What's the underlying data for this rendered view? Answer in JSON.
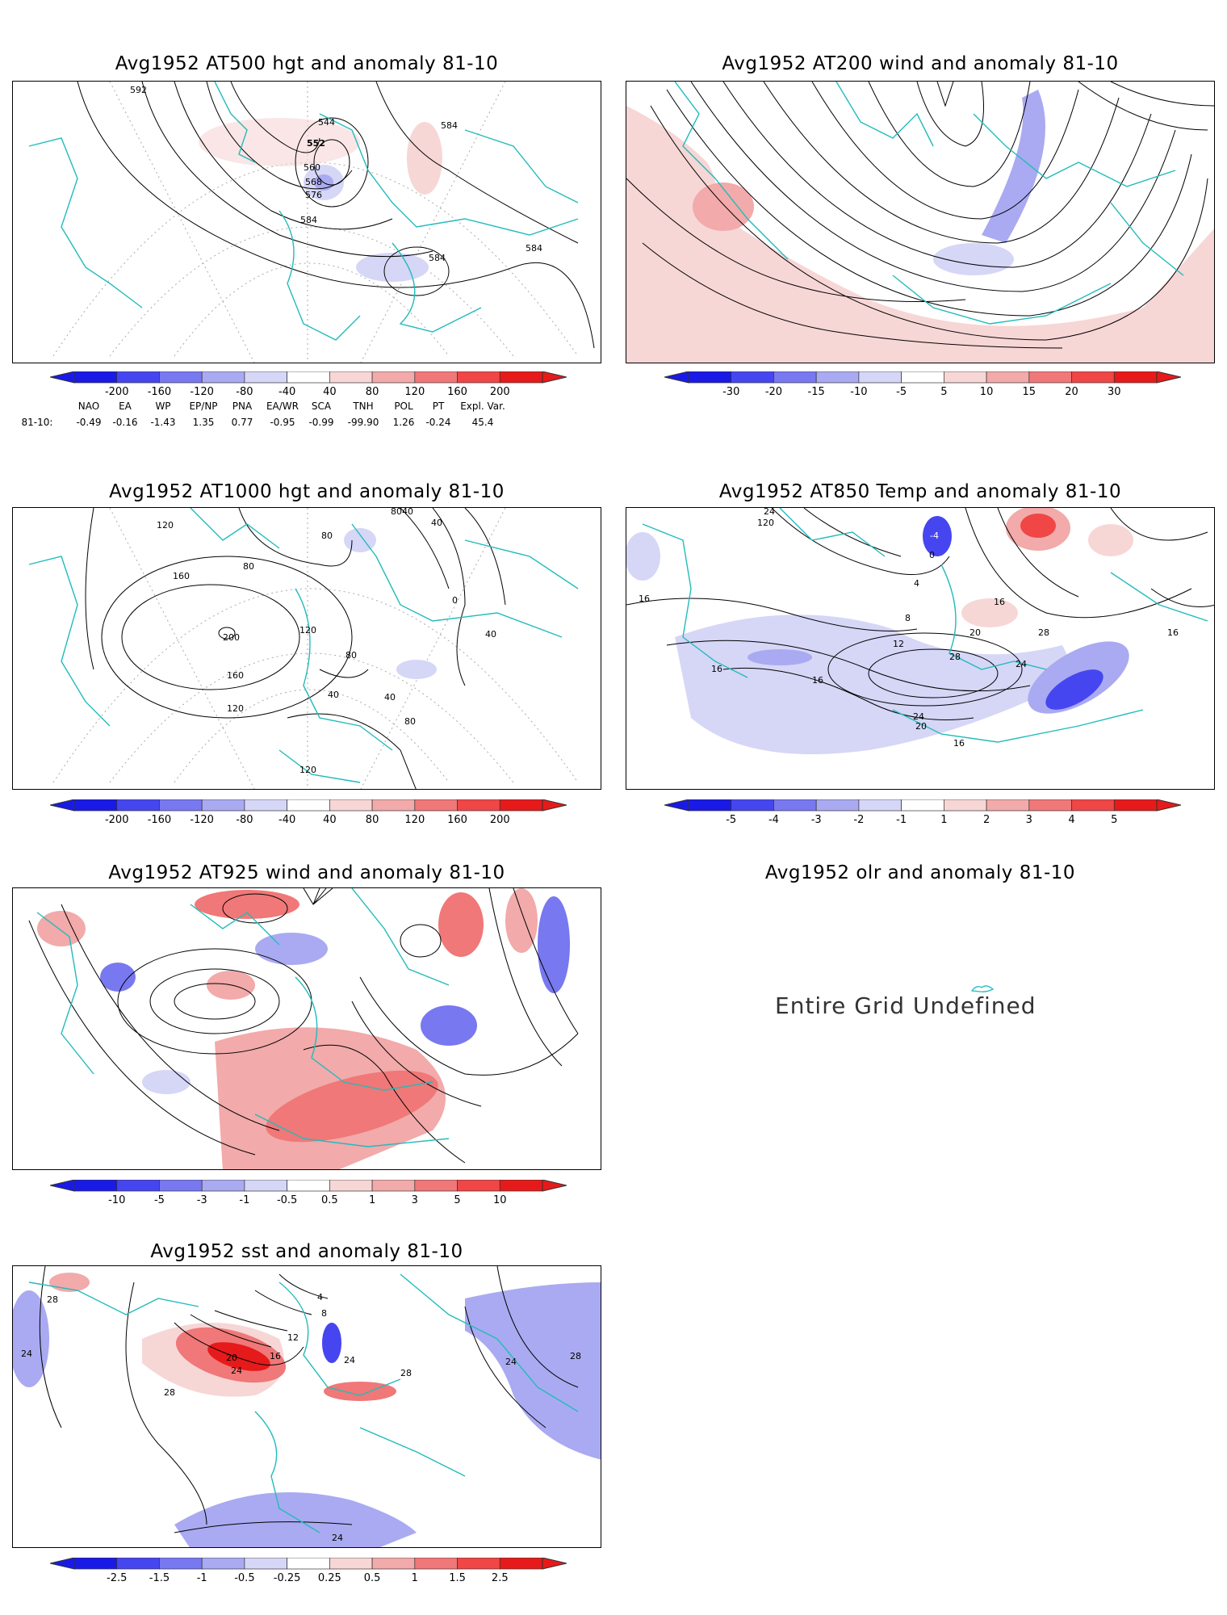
{
  "panels": {
    "p1": {
      "title": "Avg1952 AT500 hgt and anomaly 81-10",
      "labels": [
        "592",
        "544",
        "552",
        "560",
        "568",
        "576",
        "584",
        "584",
        "584",
        "584"
      ]
    },
    "p2": {
      "title": "Avg1952 AT200 wind and anomaly 81-10"
    },
    "p3": {
      "title": "Avg1952 AT1000 hgt and anomaly 81-10",
      "labels": [
        "120",
        "80",
        "40",
        "80",
        "40",
        "80",
        "160",
        "200",
        "160",
        "120",
        "120",
        "80",
        "0",
        "40",
        "40",
        "40",
        "80",
        "120"
      ]
    },
    "p4": {
      "title": "Avg1952 AT850 Temp and anomaly 81-10",
      "labels": [
        "24",
        "120",
        "-4",
        "0",
        "4",
        "8",
        "12",
        "16",
        "16",
        "16",
        "16",
        "20",
        "20",
        "24",
        "24",
        "28",
        "28",
        "16",
        "16"
      ]
    },
    "p5": {
      "title": "Avg1952 AT925 wind and anomaly 81-10"
    },
    "p6": {
      "title": "Avg1952 olr and anomaly 81-10",
      "message": "Entire Grid Undefined"
    },
    "p7": {
      "title": "Avg1952 sst and anomaly 81-10",
      "labels": [
        "28",
        "24",
        "4",
        "8",
        "12",
        "16",
        "20",
        "24",
        "28",
        "28",
        "24",
        "28",
        "24",
        "24"
      ]
    }
  },
  "colorbars": {
    "hgt500": [
      "-200",
      "-160",
      "-120",
      "-80",
      "-40",
      "40",
      "80",
      "120",
      "160",
      "200"
    ],
    "wind200": [
      "-30",
      "-20",
      "-15",
      "-10",
      "-5",
      "5",
      "10",
      "15",
      "20",
      "30"
    ],
    "hgt1000": [
      "-200",
      "-160",
      "-120",
      "-80",
      "-40",
      "40",
      "80",
      "120",
      "160",
      "200"
    ],
    "temp850": [
      "-5",
      "-4",
      "-3",
      "-2",
      "-1",
      "1",
      "2",
      "3",
      "4",
      "5"
    ],
    "wind925": [
      "-10",
      "-5",
      "-3",
      "-1",
      "-0.5",
      "0.5",
      "1",
      "3",
      "5",
      "10"
    ],
    "sst": [
      "-2.5",
      "-1.5",
      "-1",
      "-0.5",
      "-0.25",
      "0.25",
      "0.5",
      "1",
      "1.5",
      "2.5"
    ]
  },
  "indices": {
    "names": [
      "NAO",
      "EA",
      "WP",
      "EP/NP",
      "PNA",
      "EA/WR",
      "SCA",
      "TNH",
      "POL",
      "PT",
      "Expl. Var."
    ],
    "row_label": "81-10:",
    "values": [
      "-0.49",
      "-0.16",
      "-1.43",
      "1.35",
      "0.77",
      "-0.95",
      "-0.99",
      "-99.90",
      "1.26",
      "-0.24",
      "45.4"
    ]
  },
  "colors": {
    "coast": "#22bbbb",
    "palette": [
      "#1a1ae6",
      "#4646f0",
      "#7878f0",
      "#aaaaf2",
      "#d6d6f7",
      "#f7d6d6",
      "#f2aaaa",
      "#f07878",
      "#f04646",
      "#e61a1a"
    ]
  }
}
